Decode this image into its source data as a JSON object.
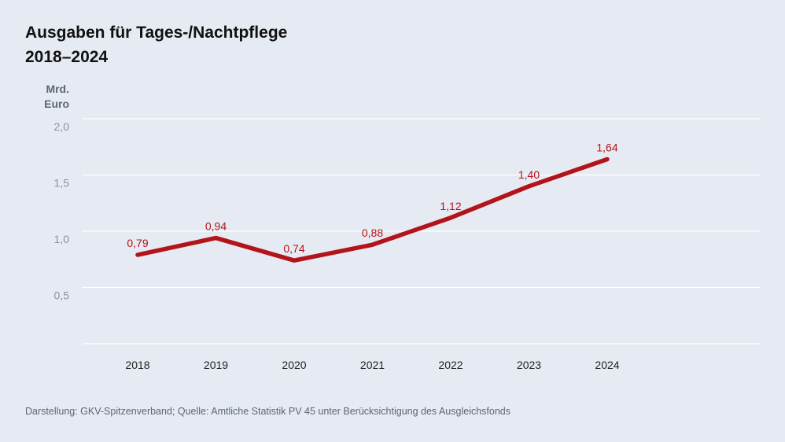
{
  "title": {
    "line1": "Ausgaben für Tages-/Nachtpflege",
    "line2": "2018–2024"
  },
  "source": "Darstellung: GKV-Spitzenverband; Quelle: Amtliche Statistik PV 45 unter Berücksichtigung des Ausgleichsfonds",
  "colors": {
    "line": "#b3141a",
    "grid": "#ffffff",
    "axis_label": "#8a93a2",
    "x_label": "#222222",
    "background": "#e6eaf2"
  },
  "chart_data": {
    "type": "line",
    "title": "Ausgaben für Tages-/Nachtpflege 2018–2024",
    "ylabel": "Mrd. Euro",
    "ylabel_lines": [
      "Mrd.",
      "Euro"
    ],
    "xlabel": "",
    "categories": [
      "2018",
      "2019",
      "2020",
      "2021",
      "2022",
      "2023",
      "2024"
    ],
    "series": [
      {
        "name": "Ausgaben für Tages-/Nachtpflege",
        "values": [
          0.79,
          0.94,
          0.74,
          0.88,
          1.12,
          1.4,
          1.64
        ],
        "labels": [
          "0,79",
          "0,94",
          "0,74",
          "0,88",
          "1,12",
          "1,40",
          "1,64"
        ]
      }
    ],
    "ylim": [
      0,
      2.0
    ],
    "yticks": [
      0.5,
      1.0,
      1.5,
      2.0
    ],
    "ytick_labels": [
      "0,5",
      "1,0",
      "1,5",
      "2,0"
    ],
    "grid": true
  }
}
